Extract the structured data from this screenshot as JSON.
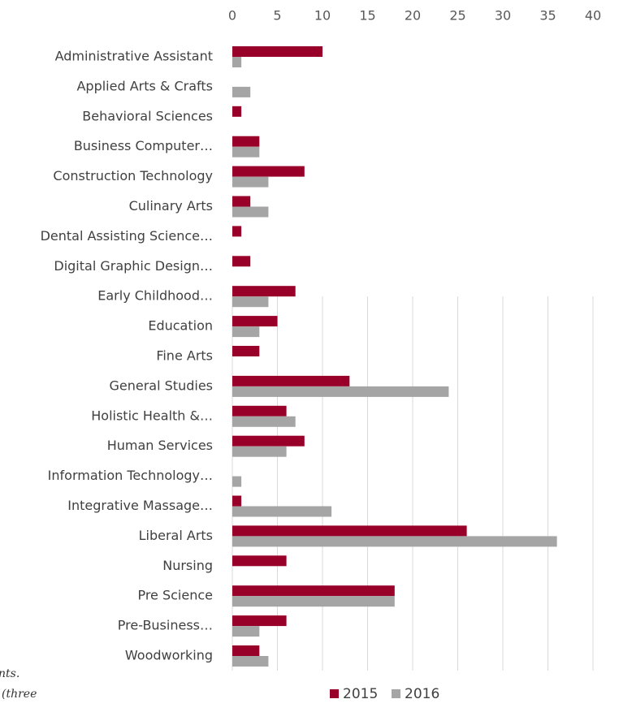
{
  "chart_data": {
    "type": "hbar",
    "categories": [
      "Administrative Assistant",
      "Applied Arts & Crafts",
      "Behavioral Sciences",
      "Business Computer…",
      "Construction Technology",
      "Culinary Arts",
      "Dental Assisting Science…",
      "Digital Graphic Design…",
      "Early Childhood…",
      "Education",
      "Fine Arts",
      "General Studies",
      "Holistic Health &…",
      "Human Services",
      "Information Technology…",
      "Integrative Massage…",
      "Liberal Arts",
      "Nursing",
      "Pre Science",
      "Pre-Business…",
      "Woodworking"
    ],
    "series": [
      {
        "name": "2015",
        "color": "#990029",
        "values": [
          10,
          0,
          1,
          3,
          8,
          2,
          1,
          2,
          7,
          5,
          3,
          13,
          6,
          8,
          0,
          1,
          26,
          6,
          18,
          6,
          3
        ]
      },
      {
        "name": "2016",
        "color": "#a5a5a5",
        "values": [
          1,
          2,
          0,
          3,
          4,
          4,
          0,
          0,
          4,
          3,
          0,
          24,
          7,
          6,
          1,
          11,
          36,
          0,
          18,
          3,
          4
        ]
      }
    ],
    "xlim": [
      0,
      40
    ],
    "xticks": [
      0,
      5,
      10,
      15,
      20,
      25,
      30,
      35,
      40
    ],
    "grid": true,
    "legend": "bottom",
    "annotations": [
      "nts.",
      "(three"
    ]
  }
}
